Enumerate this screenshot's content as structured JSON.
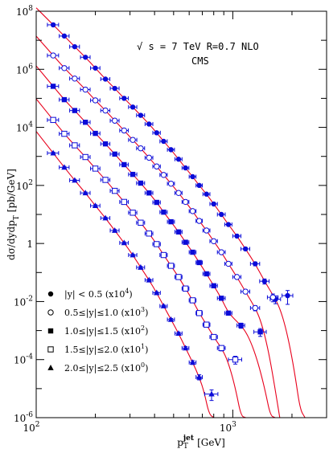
{
  "chart_data": {
    "type": "scatter",
    "xlabel": "p",
    "xlabel_sub": "T",
    "xlabel_sup": "jet",
    "xlabel_unit": "[GeV]",
    "ylabel": "dσ/dydp",
    "ylabel_sub": "T",
    "ylabel_unit": "[pb/GeV]",
    "x_scale": "log",
    "y_scale": "log",
    "xlim": [
      100,
      3000
    ],
    "ylim": [
      1e-06,
      100000000.0
    ],
    "x_ticks": [
      {
        "value": 100,
        "base": "10",
        "exp": "2"
      },
      {
        "value": 1000,
        "base": "10",
        "exp": "3"
      }
    ],
    "y_ticks": [
      {
        "value": 100000000.0,
        "base": "10",
        "exp": "8"
      },
      {
        "value": 1000000.0,
        "base": "10",
        "exp": "6"
      },
      {
        "value": 10000.0,
        "base": "10",
        "exp": "4"
      },
      {
        "value": 100.0,
        "base": "10",
        "exp": "2"
      },
      {
        "value": 1,
        "base": "1",
        "exp": ""
      },
      {
        "value": 0.01,
        "base": "10",
        "exp": "-2"
      },
      {
        "value": 0.0001,
        "base": "10",
        "exp": "-4"
      },
      {
        "value": 1e-06,
        "base": "10",
        "exp": "-6"
      }
    ],
    "annotations": {
      "energy": "√ s = 7 TeV R=0.7  NLO",
      "experiment": "CMS"
    },
    "legend_position": "bottom-left",
    "curve_color": "#e8001c",
    "point_color": "#0b0bd8",
    "marker_color": "#000000",
    "series": [
      {
        "name": "|y| < 0.5 (x10",
        "name_sup": "4",
        "name_end": ")",
        "marker": "filled-circle",
        "scale": 10000,
        "x": [
          122,
          139,
          157,
          178,
          200,
          225,
          251,
          280,
          310,
          340,
          375,
          410,
          445,
          485,
          530,
          575,
          625,
          675,
          735,
          800,
          875,
          950,
          1050,
          1160,
          1300,
          1450,
          1650,
          1900
        ],
        "xerr": [
          8,
          8,
          9,
          10,
          11,
          12,
          13,
          14,
          15,
          16,
          17,
          18,
          19,
          20,
          22,
          23,
          25,
          25,
          30,
          35,
          40,
          40,
          50,
          60,
          70,
          80,
          100,
          120
        ],
        "y": [
          34000000.0,
          14000000.0,
          6000000.0,
          2600000.0,
          1100000.0,
          460000.0,
          220000.0,
          100000.0,
          50000.0,
          26000.0,
          13000.0,
          6500.0,
          3300.0,
          1700.0,
          800,
          400,
          200,
          100,
          50,
          23,
          10,
          4.5,
          1.8,
          0.65,
          0.2,
          0.05,
          0.012,
          0.016
        ],
        "yerr_rel": [
          0.08,
          0.08,
          0.08,
          0.08,
          0.08,
          0.08,
          0.08,
          0.08,
          0.08,
          0.08,
          0.08,
          0.08,
          0.08,
          0.08,
          0.08,
          0.08,
          0.08,
          0.08,
          0.08,
          0.08,
          0.08,
          0.09,
          0.1,
          0.12,
          0.15,
          0.2,
          0.3,
          0.5
        ]
      },
      {
        "name": "0.5≤|y|≤1.0 (x10",
        "name_sup": "3",
        "name_end": ")",
        "marker": "open-circle",
        "scale": 1000,
        "x": [
          122,
          139,
          157,
          178,
          200,
          225,
          251,
          280,
          310,
          340,
          375,
          410,
          445,
          485,
          530,
          575,
          625,
          675,
          735,
          800,
          875,
          950,
          1050,
          1160,
          1300,
          1600
        ],
        "xerr": [
          8,
          8,
          9,
          10,
          11,
          12,
          13,
          14,
          15,
          16,
          17,
          18,
          19,
          20,
          22,
          23,
          25,
          25,
          30,
          35,
          40,
          40,
          50,
          60,
          70,
          100
        ],
        "y": [
          3000000.0,
          1100000.0,
          480000.0,
          200000.0,
          85000.0,
          38000.0,
          17000.0,
          7800.0,
          3700.0,
          1900.0,
          900,
          450,
          230,
          115,
          55,
          27,
          13,
          6.0,
          2.8,
          1.2,
          0.5,
          0.2,
          0.07,
          0.022,
          0.006,
          0.014
        ],
        "yerr_rel": [
          0.08,
          0.08,
          0.08,
          0.08,
          0.08,
          0.08,
          0.08,
          0.08,
          0.08,
          0.08,
          0.08,
          0.08,
          0.08,
          0.08,
          0.08,
          0.08,
          0.08,
          0.08,
          0.08,
          0.08,
          0.09,
          0.1,
          0.12,
          0.15,
          0.2,
          0.3
        ]
      },
      {
        "name": "1.0≤|y|≤1.5 (x10",
        "name_sup": "2",
        "name_end": ")",
        "marker": "filled-square",
        "scale": 100,
        "x": [
          122,
          139,
          157,
          178,
          200,
          225,
          251,
          280,
          310,
          340,
          375,
          410,
          445,
          485,
          530,
          575,
          625,
          675,
          735,
          800,
          875,
          950,
          1100,
          1380
        ],
        "xerr": [
          8,
          8,
          9,
          10,
          11,
          12,
          13,
          14,
          15,
          16,
          17,
          18,
          19,
          20,
          22,
          23,
          25,
          25,
          30,
          35,
          40,
          40,
          50,
          100
        ],
        "y": [
          260000.0,
          90000.0,
          38000.0,
          15000.0,
          6200.0,
          2700.0,
          1200.0,
          520,
          240,
          120,
          55,
          26,
          12,
          5.6,
          2.5,
          1.1,
          0.5,
          0.22,
          0.09,
          0.035,
          0.013,
          0.004,
          0.0015,
          0.0009
        ],
        "yerr_rel": [
          0.08,
          0.08,
          0.08,
          0.08,
          0.08,
          0.08,
          0.08,
          0.08,
          0.08,
          0.08,
          0.08,
          0.08,
          0.08,
          0.08,
          0.08,
          0.08,
          0.08,
          0.08,
          0.09,
          0.1,
          0.12,
          0.15,
          0.2,
          0.3
        ]
      },
      {
        "name": "1.5≤|y|≤2.0 (x10",
        "name_sup": "1",
        "name_end": ")",
        "marker": "open-square",
        "scale": 10,
        "x": [
          122,
          139,
          157,
          178,
          200,
          225,
          251,
          280,
          310,
          340,
          375,
          410,
          445,
          485,
          530,
          575,
          625,
          675,
          735,
          800,
          875,
          1030
        ],
        "xerr": [
          8,
          8,
          9,
          10,
          11,
          12,
          13,
          14,
          15,
          16,
          17,
          18,
          19,
          20,
          22,
          23,
          25,
          25,
          30,
          35,
          40,
          80
        ],
        "y": [
          18000.0,
          6000.0,
          2400.0,
          950,
          380,
          155,
          65,
          27,
          11.5,
          5.2,
          2.2,
          0.95,
          0.4,
          0.17,
          0.07,
          0.028,
          0.011,
          0.004,
          0.0016,
          0.0006,
          0.00025,
          0.0001
        ],
        "yerr_rel": [
          0.08,
          0.08,
          0.08,
          0.08,
          0.08,
          0.08,
          0.08,
          0.08,
          0.08,
          0.08,
          0.08,
          0.08,
          0.08,
          0.08,
          0.08,
          0.08,
          0.09,
          0.1,
          0.12,
          0.15,
          0.2,
          0.3
        ]
      },
      {
        "name": "2.0≤|y|≤2.5 (x10",
        "name_sup": "0",
        "name_end": ")",
        "marker": "filled-triangle",
        "scale": 1,
        "x": [
          122,
          139,
          157,
          178,
          200,
          225,
          251,
          280,
          310,
          340,
          375,
          410,
          445,
          485,
          530,
          575,
          625,
          675,
          780
        ],
        "xerr": [
          8,
          8,
          9,
          10,
          11,
          12,
          13,
          14,
          15,
          16,
          17,
          18,
          19,
          20,
          22,
          23,
          25,
          25,
          60
        ],
        "y": [
          1300.0,
          420,
          150,
          55,
          20,
          7.5,
          2.8,
          1.05,
          0.4,
          0.15,
          0.055,
          0.02,
          0.007,
          0.0024,
          0.0008,
          0.00025,
          8e-05,
          2.5e-05,
          6.5e-06
        ],
        "yerr_rel": [
          0.08,
          0.08,
          0.08,
          0.08,
          0.08,
          0.08,
          0.08,
          0.08,
          0.08,
          0.08,
          0.08,
          0.08,
          0.08,
          0.09,
          0.1,
          0.12,
          0.15,
          0.2,
          0.4
        ]
      }
    ]
  }
}
